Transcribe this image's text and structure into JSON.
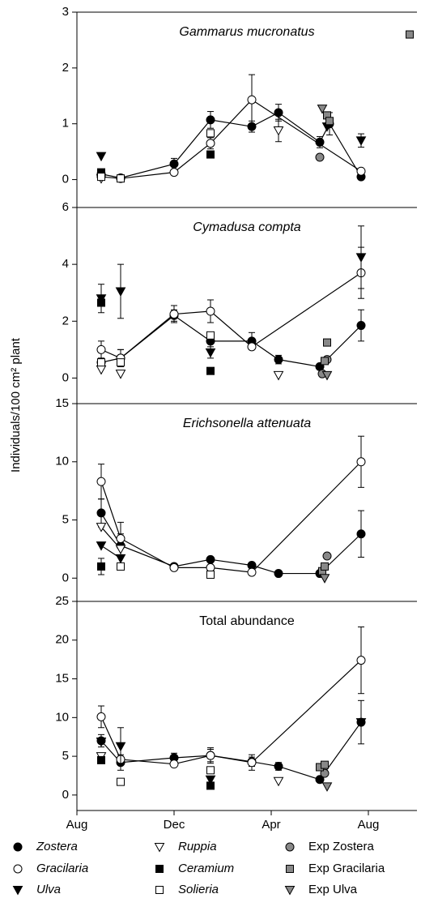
{
  "y_label": "Individuals/100 cm² plant",
  "chart_data": [
    {
      "type": "scatter",
      "title": "Gammarus mucronatus",
      "title_italic": true,
      "xlim": [
        0,
        14
      ],
      "ylim": [
        -0.5,
        3
      ],
      "yticks": [
        0,
        1,
        2,
        3
      ],
      "series": [
        {
          "name": "Zostera",
          "marker": "circle",
          "color": "#000000",
          "line": true,
          "x": [
            1,
            1.8,
            4,
            5.5,
            7.2,
            8.3,
            10.0,
            10.4,
            11.7
          ],
          "values": [
            0.1,
            0.03,
            0.28,
            1.07,
            0.95,
            1.2,
            0.67,
            1.0,
            0.05
          ],
          "errors": [
            null,
            null,
            0.1,
            0.15,
            0.1,
            0.15,
            0.1,
            0.2,
            null
          ]
        },
        {
          "name": "Gracilaria",
          "marker": "circle",
          "color": "#ffffff",
          "line": true,
          "x": [
            1,
            1.8,
            4,
            5.5,
            7.2,
            11.7
          ],
          "values": [
            0.05,
            0.02,
            0.13,
            0.65,
            1.43,
            0.15
          ],
          "errors": [
            null,
            null,
            null,
            0.1,
            0.45,
            null
          ]
        },
        {
          "name": "Ulva",
          "marker": "triangle",
          "color": "#000000",
          "line": false,
          "x": [
            1,
            10.3,
            11.7
          ],
          "values": [
            0.42,
            0.95,
            0.7
          ],
          "errors": [
            null,
            null,
            0.12
          ]
        },
        {
          "name": "Ruppia",
          "marker": "triangle",
          "color": "#ffffff",
          "line": false,
          "x": [
            1,
            8.3
          ],
          "values": [
            0.02,
            0.88
          ],
          "errors": [
            null,
            0.2
          ]
        },
        {
          "name": "Ceramium",
          "marker": "square",
          "color": "#000000",
          "line": false,
          "x": [
            1,
            5.5
          ],
          "values": [
            0.13,
            0.45
          ]
        },
        {
          "name": "Solieria",
          "marker": "square",
          "color": "#ffffff",
          "line": false,
          "x": [
            1,
            1.8,
            5.5
          ],
          "values": [
            0.05,
            0.02,
            0.83
          ]
        },
        {
          "name": "Exp Zostera",
          "marker": "circle",
          "color": "#888888",
          "line": false,
          "x": [
            10.0
          ],
          "values": [
            0.4
          ]
        },
        {
          "name": "Exp Gracilaria",
          "marker": "square",
          "color": "#888888",
          "line": false,
          "x": [
            10.3,
            10.4,
            13.7
          ],
          "values": [
            1.15,
            1.05,
            2.6
          ]
        },
        {
          "name": "Exp Ulva",
          "marker": "triangle",
          "color": "#888888",
          "line": false,
          "x": [
            10.1
          ],
          "values": [
            1.27
          ]
        }
      ]
    },
    {
      "type": "scatter",
      "title": "Cymadusa compta",
      "title_italic": true,
      "xlim": [
        0,
        14
      ],
      "ylim": [
        -0.9,
        6
      ],
      "yticks": [
        0,
        2,
        4,
        6
      ],
      "series": [
        {
          "name": "Zostera",
          "marker": "circle",
          "color": "#000000",
          "line": true,
          "x": [
            1,
            1.8,
            4,
            5.5,
            7.2,
            8.3,
            10.0,
            11.7
          ],
          "values": [
            0.55,
            0.7,
            2.2,
            1.3,
            1.3,
            0.65,
            0.4,
            1.85
          ],
          "errors": [
            0.15,
            0.3,
            0.2,
            0.3,
            0.3,
            0.15,
            null,
            0.55
          ]
        },
        {
          "name": "Gracilaria",
          "marker": "circle",
          "color": "#ffffff",
          "line": true,
          "x": [
            1,
            1.8,
            4,
            5.5,
            7.2,
            11.7
          ],
          "values": [
            1.0,
            0.7,
            2.25,
            2.35,
            1.1,
            3.7
          ],
          "errors": [
            0.3,
            0.3,
            0.3,
            0.4,
            null,
            0.9
          ]
        },
        {
          "name": "Ulva",
          "marker": "triangle",
          "color": "#000000",
          "line": false,
          "x": [
            1,
            1.8,
            5.5,
            11.7
          ],
          "values": [
            2.8,
            3.05,
            0.9,
            4.25
          ],
          "errors": [
            0.5,
            0.95,
            0.2,
            1.1
          ]
        },
        {
          "name": "Ruppia",
          "marker": "triangle",
          "color": "#ffffff",
          "line": false,
          "x": [
            1,
            1.8,
            8.3
          ],
          "values": [
            0.3,
            0.15,
            0.1
          ]
        },
        {
          "name": "Ceramium",
          "marker": "square",
          "color": "#000000",
          "line": false,
          "x": [
            1,
            5.5
          ],
          "values": [
            2.65,
            0.25
          ]
        },
        {
          "name": "Solieria",
          "marker": "square",
          "color": "#ffffff",
          "line": false,
          "x": [
            1,
            1.8,
            5.5
          ],
          "values": [
            0.55,
            0.55,
            1.5
          ]
        },
        {
          "name": "Exp Zostera",
          "marker": "circle",
          "color": "#888888",
          "line": false,
          "x": [
            10.1,
            10.3
          ],
          "values": [
            0.15,
            0.65
          ]
        },
        {
          "name": "Exp Gracilaria",
          "marker": "square",
          "color": "#888888",
          "line": false,
          "x": [
            10.2,
            10.3
          ],
          "values": [
            0.6,
            1.25
          ]
        },
        {
          "name": "Exp Ulva",
          "marker": "triangle",
          "color": "#888888",
          "line": false,
          "x": [
            10.3
          ],
          "values": [
            0.1
          ]
        }
      ]
    },
    {
      "type": "scatter",
      "title": "Erichsonella attenuata",
      "title_italic": true,
      "xlim": [
        0,
        14
      ],
      "ylim": [
        -2,
        15
      ],
      "yticks": [
        0,
        5,
        10,
        15
      ],
      "series": [
        {
          "name": "Zostera",
          "marker": "circle",
          "color": "#000000",
          "line": true,
          "x": [
            1,
            1.8,
            4,
            5.5,
            7.2,
            8.3,
            10.0,
            11.7
          ],
          "values": [
            5.6,
            2.8,
            1.0,
            1.6,
            1.1,
            0.4,
            0.4,
            3.8
          ],
          "errors": [
            1.2,
            1.0,
            null,
            null,
            null,
            null,
            null,
            2.0
          ]
        },
        {
          "name": "Gracilaria",
          "marker": "circle",
          "color": "#ffffff",
          "line": true,
          "x": [
            1,
            1.8,
            4,
            5.5,
            7.2,
            11.7
          ],
          "values": [
            8.3,
            3.4,
            0.9,
            0.9,
            0.5,
            10.0
          ],
          "errors": [
            1.5,
            1.4,
            null,
            null,
            null,
            2.2
          ]
        },
        {
          "name": "Ulva",
          "marker": "triangle",
          "color": "#000000",
          "line": true,
          "x": [
            1,
            1.8
          ],
          "values": [
            2.8,
            1.7
          ]
        },
        {
          "name": "Ruppia",
          "marker": "triangle",
          "color": "#ffffff",
          "line": true,
          "x": [
            1,
            1.8
          ],
          "values": [
            4.4,
            2.5
          ]
        },
        {
          "name": "Ceramium",
          "marker": "square",
          "color": "#000000",
          "line": false,
          "x": [
            1
          ],
          "values": [
            1.0
          ],
          "errors": [
            0.7
          ]
        },
        {
          "name": "Solieria",
          "marker": "square",
          "color": "#ffffff",
          "line": false,
          "x": [
            1.8,
            5.5
          ],
          "values": [
            1.0,
            0.3
          ]
        },
        {
          "name": "Exp Zostera",
          "marker": "circle",
          "color": "#888888",
          "line": false,
          "x": [
            10.3
          ],
          "values": [
            1.9
          ]
        },
        {
          "name": "Exp Gracilaria",
          "marker": "square",
          "color": "#888888",
          "line": false,
          "x": [
            10.1,
            10.2
          ],
          "values": [
            0.6,
            1.0
          ]
        },
        {
          "name": "Exp Ulva",
          "marker": "triangle",
          "color": "#888888",
          "line": false,
          "x": [
            10.2
          ],
          "values": [
            0.0
          ]
        }
      ]
    },
    {
      "type": "scatter",
      "title": "Total abundance",
      "title_italic": false,
      "xlim": [
        0,
        14
      ],
      "ylim": [
        -2,
        25
      ],
      "yticks": [
        0,
        5,
        10,
        15,
        20,
        25
      ],
      "xticks": [
        {
          "value": 0,
          "label": "Aug"
        },
        {
          "value": 4,
          "label": "Dec"
        },
        {
          "value": 8,
          "label": "Apr"
        },
        {
          "value": 12,
          "label": "Aug"
        }
      ],
      "series": [
        {
          "name": "Zostera",
          "marker": "circle",
          "color": "#000000",
          "line": true,
          "x": [
            1,
            1.8,
            4,
            5.5,
            7.2,
            8.3,
            10.0,
            11.7
          ],
          "values": [
            7.0,
            4.2,
            4.8,
            5.1,
            4.3,
            3.7,
            2.0,
            9.4
          ],
          "errors": [
            0.8,
            1.0,
            0.6,
            0.8,
            0.6,
            0.5,
            null,
            2.8
          ]
        },
        {
          "name": "Gracilaria",
          "marker": "circle",
          "color": "#ffffff",
          "line": true,
          "x": [
            1,
            1.8,
            4,
            5.5,
            7.2,
            11.7
          ],
          "values": [
            10.1,
            4.6,
            4.0,
            5.1,
            4.2,
            17.4
          ],
          "errors": [
            1.4,
            null,
            null,
            1.0,
            1.0,
            4.3
          ]
        },
        {
          "name": "Ulva",
          "marker": "triangle",
          "color": "#000000",
          "line": false,
          "x": [
            1,
            1.8,
            5.5,
            11.7
          ],
          "values": [
            6.9,
            6.3,
            2.0,
            9.4
          ],
          "errors": [
            null,
            2.4,
            null,
            null
          ]
        },
        {
          "name": "Ruppia",
          "marker": "triangle",
          "color": "#ffffff",
          "line": false,
          "x": [
            1,
            8.3
          ],
          "values": [
            5.0,
            1.8
          ]
        },
        {
          "name": "Ceramium",
          "marker": "square",
          "color": "#000000",
          "line": false,
          "x": [
            1,
            5.5
          ],
          "values": [
            4.5,
            1.2
          ]
        },
        {
          "name": "Solieria",
          "marker": "square",
          "color": "#ffffff",
          "line": false,
          "x": [
            1.8,
            5.5
          ],
          "values": [
            1.7,
            3.2
          ]
        },
        {
          "name": "Exp Zostera",
          "marker": "circle",
          "color": "#888888",
          "line": false,
          "x": [
            10.2
          ],
          "values": [
            2.8
          ]
        },
        {
          "name": "Exp Gracilaria",
          "marker": "square",
          "color": "#888888",
          "line": false,
          "x": [
            10.0,
            10.2
          ],
          "values": [
            3.6,
            3.9
          ]
        },
        {
          "name": "Exp Ulva",
          "marker": "triangle",
          "color": "#888888",
          "line": false,
          "x": [
            10.3
          ],
          "values": [
            1.1
          ]
        }
      ]
    }
  ]
}
